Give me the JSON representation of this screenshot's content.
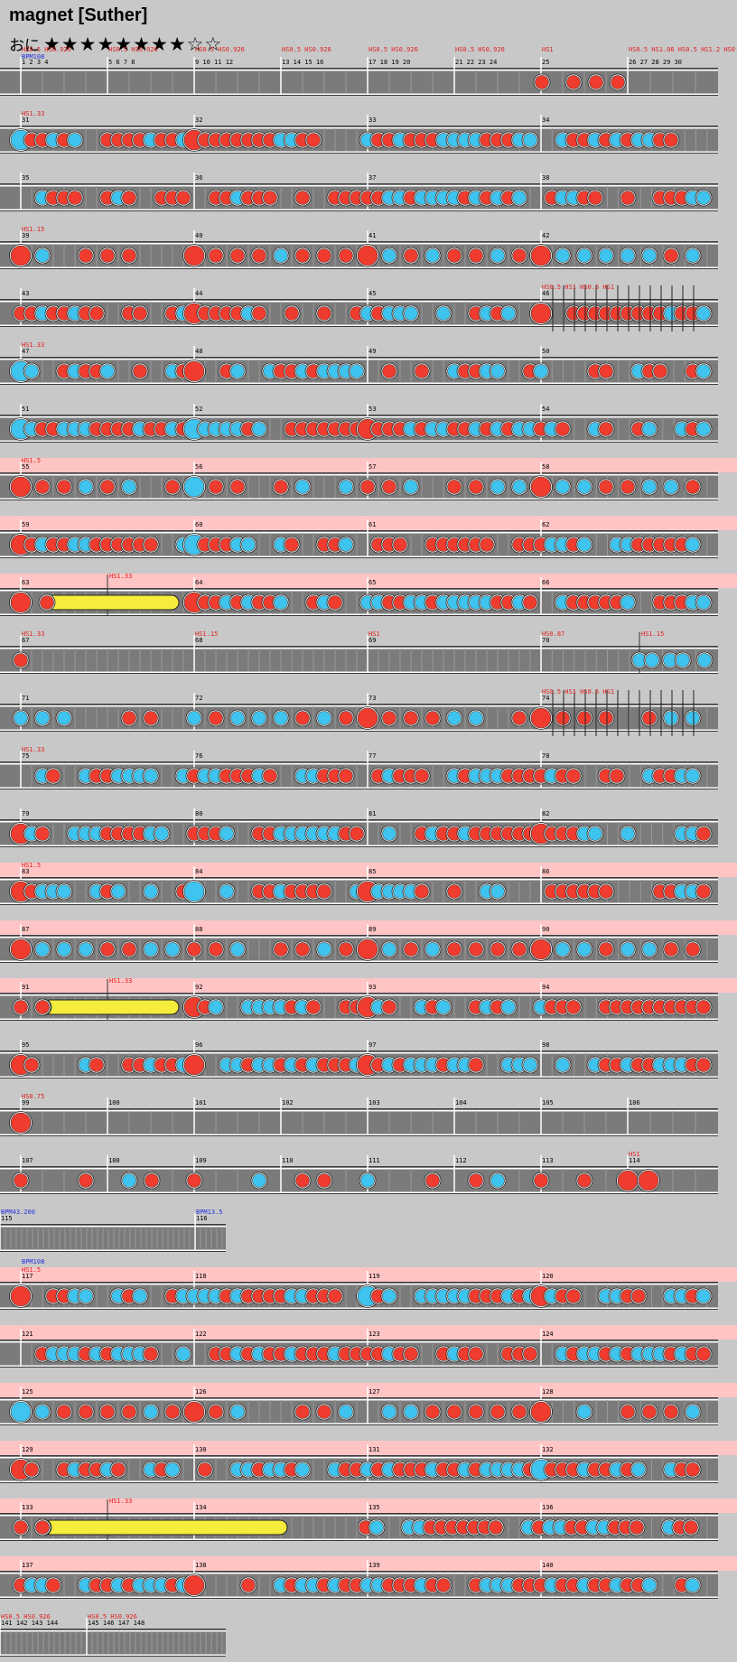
{
  "title": "magnet [Suther]",
  "difficulty": {
    "label": "おに",
    "stars_filled": "★★★★★★★★",
    "stars_empty": "☆☆"
  },
  "colors": {
    "don": "#ef3c2e",
    "ka": "#3ec4ee",
    "roll": "#f5ec3b",
    "hs_text": "#e0201e",
    "bpm_text": "#2030e0",
    "row_hi": "#ffc4c4",
    "lane": "#7b7b7b"
  },
  "rows": [
    {
      "measures": [
        "1 2 3 4",
        "5 6 7 8",
        "9 10 11 12",
        "13 14 15 16",
        "17 18 19 20",
        "21 22 23 24",
        "25",
        "26 27 28 29 30"
      ],
      "labels": [
        "HS0.5 HS0.926",
        "HS0.5 HS0.926",
        "HS0.5 HS0.926",
        "HS0.5 HS0.926",
        "HS0.5 HS0.926",
        "HS0.5 HS0.926",
        "HS1",
        "HS0.5 HS1.06 HS0.5 HS1.2 HS0.5 HS1.26"
      ],
      "bpm": "BPM108",
      "hi": false
    },
    {
      "measures": [
        "31",
        "32",
        "33",
        "34"
      ],
      "hs": "HS1.33",
      "hi": false
    },
    {
      "measures": [
        "35",
        "36",
        "37",
        "38"
      ],
      "hi": false
    },
    {
      "measures": [
        "39",
        "40",
        "41",
        "42"
      ],
      "hs": "HS1.15",
      "hi": false
    },
    {
      "measures": [
        "43",
        "44",
        "45",
        "46"
      ],
      "hi": false
    },
    {
      "measures": [
        "47",
        "48",
        "49",
        "50"
      ],
      "hs": "HS1.33",
      "hi": false
    },
    {
      "measures": [
        "51",
        "52",
        "53",
        "54"
      ],
      "hi": false
    },
    {
      "measures": [
        "55",
        "56",
        "57",
        "58"
      ],
      "hs": "HS1.5",
      "hi": true
    },
    {
      "measures": [
        "59",
        "60",
        "61",
        "62"
      ],
      "hi": true
    },
    {
      "measures": [
        "63",
        "64",
        "65",
        "66"
      ],
      "hs_mid": "HS1.33",
      "hi": true
    },
    {
      "measures": [
        "67",
        "68",
        "69",
        "70"
      ],
      "labels": [
        "HS1.33",
        "HS1.15",
        "HS1",
        "HS0.87"
      ],
      "hs_mid": "HS1.15",
      "hi": false
    },
    {
      "measures": [
        "71",
        "72",
        "73",
        "74"
      ],
      "hi": false
    },
    {
      "measures": [
        "75",
        "76",
        "77",
        "78"
      ],
      "hs": "HS1.33",
      "hi": false
    },
    {
      "measures": [
        "79",
        "80",
        "81",
        "82"
      ],
      "hi": false
    },
    {
      "measures": [
        "83",
        "84",
        "85",
        "86"
      ],
      "hs": "HS1.5",
      "hi": true
    },
    {
      "measures": [
        "87",
        "88",
        "89",
        "90"
      ],
      "hi": true
    },
    {
      "measures": [
        "91",
        "92",
        "93",
        "94"
      ],
      "hs_mid": "HS1.33",
      "hi": true
    },
    {
      "measures": [
        "95",
        "96",
        "97",
        "98"
      ],
      "hi": false
    },
    {
      "measures": [
        "99",
        "100",
        "101",
        "102",
        "103",
        "104",
        "105",
        "106"
      ],
      "hs": "HS0.75",
      "hi": false
    },
    {
      "measures": [
        "107",
        "108",
        "109",
        "110",
        "111",
        "112",
        "113",
        "114"
      ],
      "hs_end": "HS1",
      "hi": false
    },
    {
      "measures": [
        "115",
        "116"
      ],
      "bpm": "BPM43.200",
      "bpm2": "BPM13.5",
      "hi": false
    },
    {
      "measures": [
        "117",
        "118",
        "119",
        "120"
      ],
      "hs": "HS1.5",
      "bpm": "BPM108",
      "hi": true
    },
    {
      "measures": [
        "121",
        "122",
        "123",
        "124"
      ],
      "hi": true
    },
    {
      "measures": [
        "125",
        "126",
        "127",
        "128"
      ],
      "hi": true
    },
    {
      "measures": [
        "129",
        "130",
        "131",
        "132"
      ],
      "hi": true
    },
    {
      "measures": [
        "133",
        "134",
        "135",
        "136"
      ],
      "hs_mid": "HS1.33",
      "hi": true
    },
    {
      "measures": [
        "137",
        "138",
        "139",
        "140"
      ],
      "hi": true
    },
    {
      "measures": [
        "141 142 143 144",
        "145 146 147 148"
      ],
      "labels": [
        "HS0.5 HS0.926",
        "HS0.5 HS0.926"
      ],
      "hi": false
    }
  ]
}
